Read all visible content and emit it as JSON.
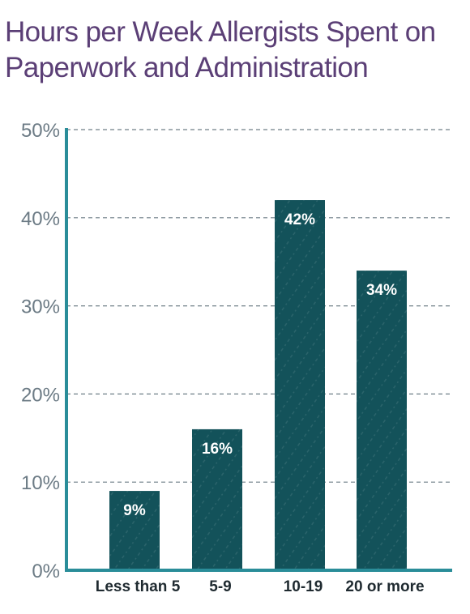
{
  "chart_data": {
    "type": "bar",
    "title": "Hours per Week Allergists Spent on Paperwork and Administration",
    "categories": [
      "Less than 5",
      "5-9",
      "10-19",
      "20 or more"
    ],
    "values": [
      9,
      16,
      42,
      34
    ],
    "data_labels": [
      "9%",
      "16%",
      "42%",
      "34%"
    ],
    "ylim": [
      0,
      50
    ],
    "yticks": [
      0,
      10,
      20,
      30,
      40,
      50
    ],
    "ytick_labels": [
      "0%",
      "10%",
      "20%",
      "30%",
      "40%",
      "50%"
    ],
    "grid": true,
    "legend": "none",
    "colors": {
      "bar": "#13525a",
      "axis": "#2a8d99",
      "grid": "#6f7f87",
      "title": "#5b3f76"
    }
  }
}
